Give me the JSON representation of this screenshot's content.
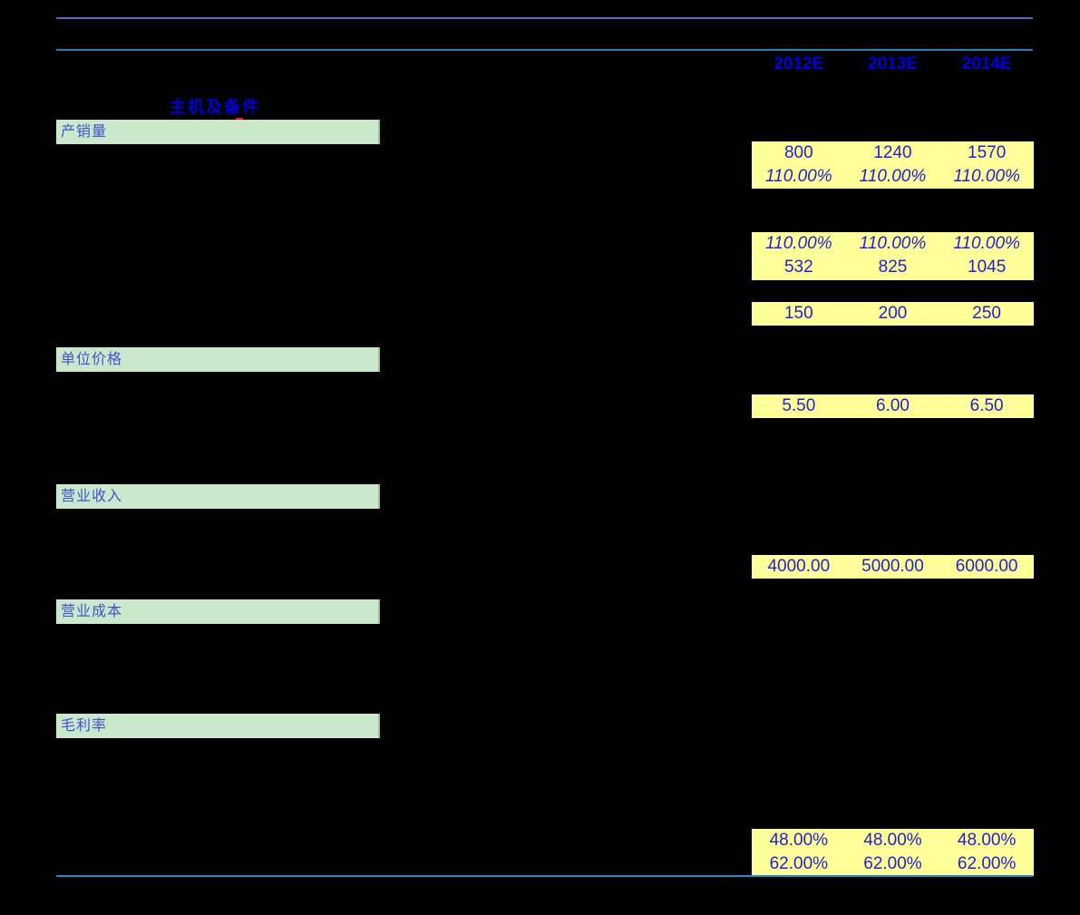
{
  "columns": [
    "2012E",
    "2013E",
    "2014E"
  ],
  "annotation": {
    "label": "主机及备件"
  },
  "sections": [
    {
      "label": "产销量"
    },
    {
      "label": "单位价格"
    },
    {
      "label": "营业收入"
    },
    {
      "label": "营业成本"
    },
    {
      "label": "毛利率"
    }
  ],
  "blocks": [
    {
      "rows": [
        {
          "italic": false,
          "values": [
            "800",
            "1240",
            "1570"
          ]
        },
        {
          "italic": true,
          "values": [
            "110.00%",
            "110.00%",
            "110.00%"
          ]
        }
      ]
    },
    {
      "rows": [
        {
          "italic": true,
          "values": [
            "110.00%",
            "110.00%",
            "110.00%"
          ]
        },
        {
          "italic": false,
          "values": [
            "532",
            "825",
            "1045"
          ]
        }
      ]
    },
    {
      "rows": [
        {
          "italic": false,
          "values": [
            "150",
            "200",
            "250"
          ]
        }
      ]
    },
    {
      "rows": [
        {
          "italic": false,
          "values": [
            "5.50",
            "6.00",
            "6.50"
          ]
        }
      ]
    },
    {
      "rows": [
        {
          "italic": false,
          "values": [
            "4000.00",
            "5000.00",
            "6000.00"
          ]
        }
      ]
    },
    {
      "rows": [
        {
          "italic": false,
          "values": [
            "48.00%",
            "48.00%",
            "48.00%"
          ]
        },
        {
          "italic": false,
          "values": [
            "62.00%",
            "62.00%",
            "62.00%"
          ]
        }
      ]
    }
  ],
  "colors": {
    "background": "#000000",
    "rule_top": "#3f74c2",
    "rule_header": "#1f86c2",
    "rule_bottom": "#1d8fce",
    "yellow_cell_fill": "#ffff99",
    "green_section_fill": "#cbe8cd",
    "value_text": "#2222cc",
    "header_text": "#0000dd",
    "section_text": "#4053cf",
    "annotation_text": "#0000d5",
    "comment_marker": "#e32400"
  }
}
